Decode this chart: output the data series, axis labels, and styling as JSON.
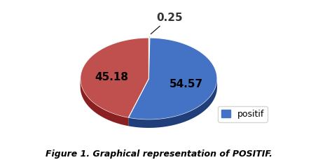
{
  "slices": [
    0.25,
    54.57,
    45.18
  ],
  "labels": [
    "0.25",
    "54.57",
    "45.18"
  ],
  "colors_top": [
    "#d4d4a0",
    "#4472C4",
    "#C0504D"
  ],
  "colors_side": [
    "#b0b070",
    "#1F3E7A",
    "#8B2020"
  ],
  "explode": [
    0.06,
    0,
    0
  ],
  "startangle": 90,
  "legend_label": "positif",
  "legend_color": "#4472C4",
  "caption": "Figure 1. Graphical representation of POSITIF.",
  "caption_fontsize": 9,
  "label_fontsize": 11,
  "background_color": "#ffffff",
  "depth": 0.12
}
